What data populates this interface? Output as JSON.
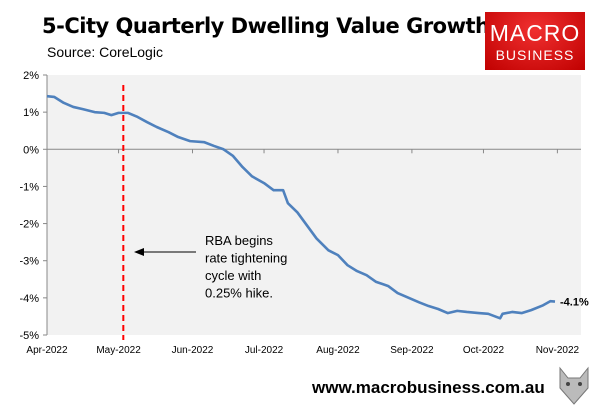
{
  "header": {
    "title": "5-City Quarterly Dwelling Value Growth",
    "subtitle": "Source: CoreLogic"
  },
  "logo": {
    "line1": "MACRO",
    "line2": "BUSINESS"
  },
  "footer": {
    "url": "www.macrobusiness.com.au"
  },
  "colors": {
    "line": "#4f81bd",
    "event_line": "#ff0000",
    "plot_bg": "#f2f2f2",
    "logo": "#e01010"
  },
  "chart_data": {
    "type": "line",
    "title": "5-City Quarterly Dwelling Value Growth",
    "ylim": [
      -5,
      2
    ],
    "yticks": [
      "2%",
      "1%",
      "0%",
      "-1%",
      "-2%",
      "-3%",
      "-4%",
      "-5%"
    ],
    "ytick_values": [
      2,
      1,
      0,
      -1,
      -2,
      -3,
      -4,
      -5
    ],
    "xlim": [
      "2022-04-01",
      "2022-11-05"
    ],
    "xticks": [
      "Apr-2022",
      "May-2022",
      "Jun-2022",
      "Jul-2022",
      "Aug-2022",
      "Sep-2022",
      "Oct-2022",
      "Nov-2022"
    ],
    "xtick_dates": [
      "2022-04-01",
      "2022-05-01",
      "2022-06-01",
      "2022-07-01",
      "2022-08-01",
      "2022-09-01",
      "2022-10-01",
      "2022-11-01"
    ],
    "grid": false,
    "series": [
      {
        "x": [
          "2022-04-01",
          "2022-04-04",
          "2022-04-08",
          "2022-04-12",
          "2022-04-16",
          "2022-04-21",
          "2022-04-25",
          "2022-04-28",
          "2022-05-01",
          "2022-05-05",
          "2022-05-09",
          "2022-05-13",
          "2022-05-17",
          "2022-05-22",
          "2022-05-26",
          "2022-05-31",
          "2022-06-06",
          "2022-06-10",
          "2022-06-14",
          "2022-06-18",
          "2022-06-22",
          "2022-06-26",
          "2022-07-01",
          "2022-07-05",
          "2022-07-09",
          "2022-07-11",
          "2022-07-15",
          "2022-07-19",
          "2022-07-23",
          "2022-07-28",
          "2022-08-01",
          "2022-08-05",
          "2022-08-09",
          "2022-08-13",
          "2022-08-17",
          "2022-08-22",
          "2022-08-26",
          "2022-08-31",
          "2022-09-04",
          "2022-09-08",
          "2022-09-12",
          "2022-09-16",
          "2022-09-20",
          "2022-09-24",
          "2022-09-29",
          "2022-10-03",
          "2022-10-08",
          "2022-10-09",
          "2022-10-13",
          "2022-10-17",
          "2022-10-21",
          "2022-10-26",
          "2022-10-29",
          "2022-10-31"
        ],
        "y": [
          1.43,
          1.41,
          1.25,
          1.14,
          1.08,
          1.0,
          0.98,
          0.92,
          0.98,
          0.98,
          0.87,
          0.73,
          0.6,
          0.46,
          0.33,
          0.22,
          0.19,
          0.09,
          0.0,
          -0.18,
          -0.48,
          -0.73,
          -0.91,
          -1.1,
          -1.1,
          -1.45,
          -1.7,
          -2.05,
          -2.4,
          -2.72,
          -2.85,
          -3.12,
          -3.28,
          -3.39,
          -3.57,
          -3.68,
          -3.87,
          -4.01,
          -4.12,
          -4.22,
          -4.3,
          -4.41,
          -4.35,
          -4.38,
          -4.41,
          -4.43,
          -4.55,
          -4.43,
          -4.38,
          -4.41,
          -4.33,
          -4.2,
          -4.09,
          -4.1
        ]
      }
    ],
    "end_label": "-4.1%",
    "event": {
      "date": "2022-05-03",
      "annotation": [
        "RBA begins",
        "rate tightening",
        "cycle with",
        "0.25% hike."
      ]
    }
  }
}
